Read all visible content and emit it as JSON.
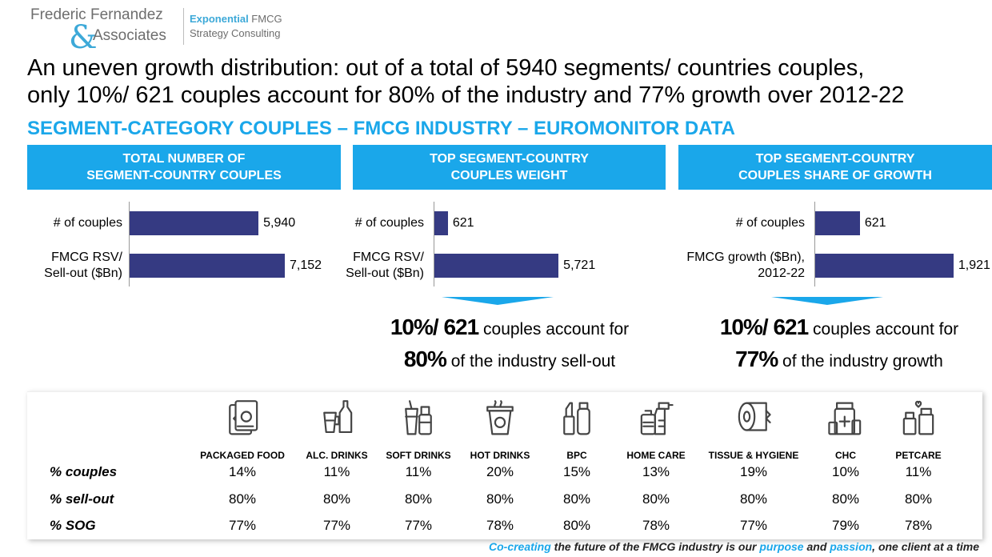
{
  "logo": {
    "line1": "Frederic Fernandez",
    "amp": "&",
    "line2": "Associates",
    "tag1_bold": "Exponential",
    "tag1_rest": " FMCG",
    "tag2": "Strategy Consulting"
  },
  "headline": {
    "line1": "An uneven growth distribution: out of a total of 5940 segments/ countries couples,",
    "line2": "only 10%/ 621 couples account for 80% of the industry and 77% growth over 2012-22"
  },
  "subhead": "SEGMENT-CATEGORY COUPLES – FMCG INDUSTRY – EUROMONITOR DATA",
  "columns": [
    {
      "title_line1": "TOTAL NUMBER OF",
      "title_line2": "SEGMENT-COUNTRY COUPLES"
    },
    {
      "title_line1": "TOP SEGMENT-COUNTRY",
      "title_line2": "COUPLES WEIGHT"
    },
    {
      "title_line1": "TOP SEGMENT-COUNTRY",
      "title_line2": "COUPLES SHARE OF GROWTH"
    }
  ],
  "chart_data": [
    {
      "type": "bar",
      "orientation": "horizontal",
      "title": "TOTAL NUMBER OF SEGMENT-COUNTRY COUPLES",
      "categories": [
        "# of couples",
        "FMCG RSV/ Sell-out ($Bn)"
      ],
      "category_lines": [
        [
          "# of couples"
        ],
        [
          "FMCG RSV/",
          "Sell-out ($Bn)"
        ]
      ],
      "values": [
        5940,
        7152
      ],
      "labels": [
        "5,940",
        "7,152"
      ],
      "color": "#353a82"
    },
    {
      "type": "bar",
      "orientation": "horizontal",
      "title": "TOP SEGMENT-COUNTRY COUPLES WEIGHT",
      "categories": [
        "# of couples",
        "FMCG RSV/ Sell-out ($Bn)"
      ],
      "category_lines": [
        [
          "# of couples"
        ],
        [
          "FMCG RSV/",
          "Sell-out ($Bn)"
        ]
      ],
      "values": [
        621,
        5721
      ],
      "labels": [
        "621",
        "5,721"
      ],
      "color": "#353a82"
    },
    {
      "type": "bar",
      "orientation": "horizontal",
      "title": "TOP SEGMENT-COUNTRY COUPLES SHARE OF GROWTH",
      "categories": [
        "# of couples",
        "FMCG growth ($Bn), 2012-22"
      ],
      "category_lines": [
        [
          "# of couples"
        ],
        [
          "FMCG growth ($Bn),",
          "2012-22"
        ]
      ],
      "values": [
        621,
        1921
      ],
      "labels": [
        "621",
        "1,921"
      ],
      "color": "#353a82"
    },
    {
      "type": "table",
      "columns": [
        "PACKAGED FOOD",
        "ALC. DRINKS",
        "SOFT DRINKS",
        "HOT DRINKS",
        "BPC",
        "HOME CARE",
        "TISSUE & HYGIENE",
        "CHC",
        "PETCARE"
      ],
      "rows": [
        {
          "label": "% couples",
          "values": [
            "14%",
            "11%",
            "11%",
            "20%",
            "15%",
            "13%",
            "19%",
            "10%",
            "11%"
          ]
        },
        {
          "label": "% sell-out",
          "values": [
            "80%",
            "80%",
            "80%",
            "80%",
            "80%",
            "80%",
            "80%",
            "80%",
            "80%"
          ]
        },
        {
          "label": "% SOG",
          "values": [
            "77%",
            "77%",
            "77%",
            "78%",
            "80%",
            "78%",
            "77%",
            "79%",
            "78%"
          ]
        }
      ]
    }
  ],
  "statements": [
    {
      "bold1": "10%/ 621",
      "text1": " couples account for",
      "bold2": "80%",
      "text2": " of the industry sell-out"
    },
    {
      "bold1": "10%/ 621",
      "text1": " couples account for",
      "bold2": "77%",
      "text2": " of the industry growth"
    }
  ],
  "category_icons": [
    "packaged-food-icon",
    "alc-drinks-icon",
    "soft-drinks-icon",
    "hot-drinks-icon",
    "bpc-icon",
    "home-care-icon",
    "tissue-hygiene-icon",
    "chc-icon",
    "petcare-icon"
  ],
  "footer": {
    "p1": "Co-creating",
    "p2": " the future of the FMCG industry is our ",
    "p3": "purpose",
    "p4": " and ",
    "p5": "passion",
    "p6": ", one client at a time"
  },
  "colors": {
    "accent": "#1aa7ea",
    "bar": "#353a82"
  }
}
